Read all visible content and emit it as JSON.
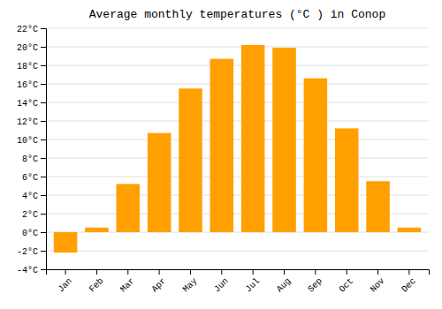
{
  "chart_data": {
    "type": "bar",
    "title": "Average monthly temperatures (°C ) in Conop",
    "categories": [
      "Jan",
      "Feb",
      "Mar",
      "Apr",
      "May",
      "Jun",
      "Jul",
      "Aug",
      "Sep",
      "Oct",
      "Nov",
      "Dec"
    ],
    "values": [
      -2.2,
      0.5,
      5.2,
      10.7,
      15.5,
      18.7,
      20.2,
      19.9,
      16.6,
      11.2,
      5.5,
      0.5
    ],
    "color": "#FFA000",
    "ylim": [
      -4,
      22
    ],
    "yticks": [
      {
        "value": -4,
        "label": "-4°C"
      },
      {
        "value": -2,
        "label": "-2°C"
      },
      {
        "value": 0,
        "label": "0°C"
      },
      {
        "value": 2,
        "label": "2°C"
      },
      {
        "value": 4,
        "label": "4°C"
      },
      {
        "value": 6,
        "label": "6°C"
      },
      {
        "value": 8,
        "label": "8°C"
      },
      {
        "value": 10,
        "label": "10°C"
      },
      {
        "value": 12,
        "label": "12°C"
      },
      {
        "value": 14,
        "label": "14°C"
      },
      {
        "value": 16,
        "label": "16°C"
      },
      {
        "value": 18,
        "label": "18°C"
      },
      {
        "value": 20,
        "label": "20°C"
      },
      {
        "value": 22,
        "label": "22°C"
      }
    ],
    "grid": true
  }
}
